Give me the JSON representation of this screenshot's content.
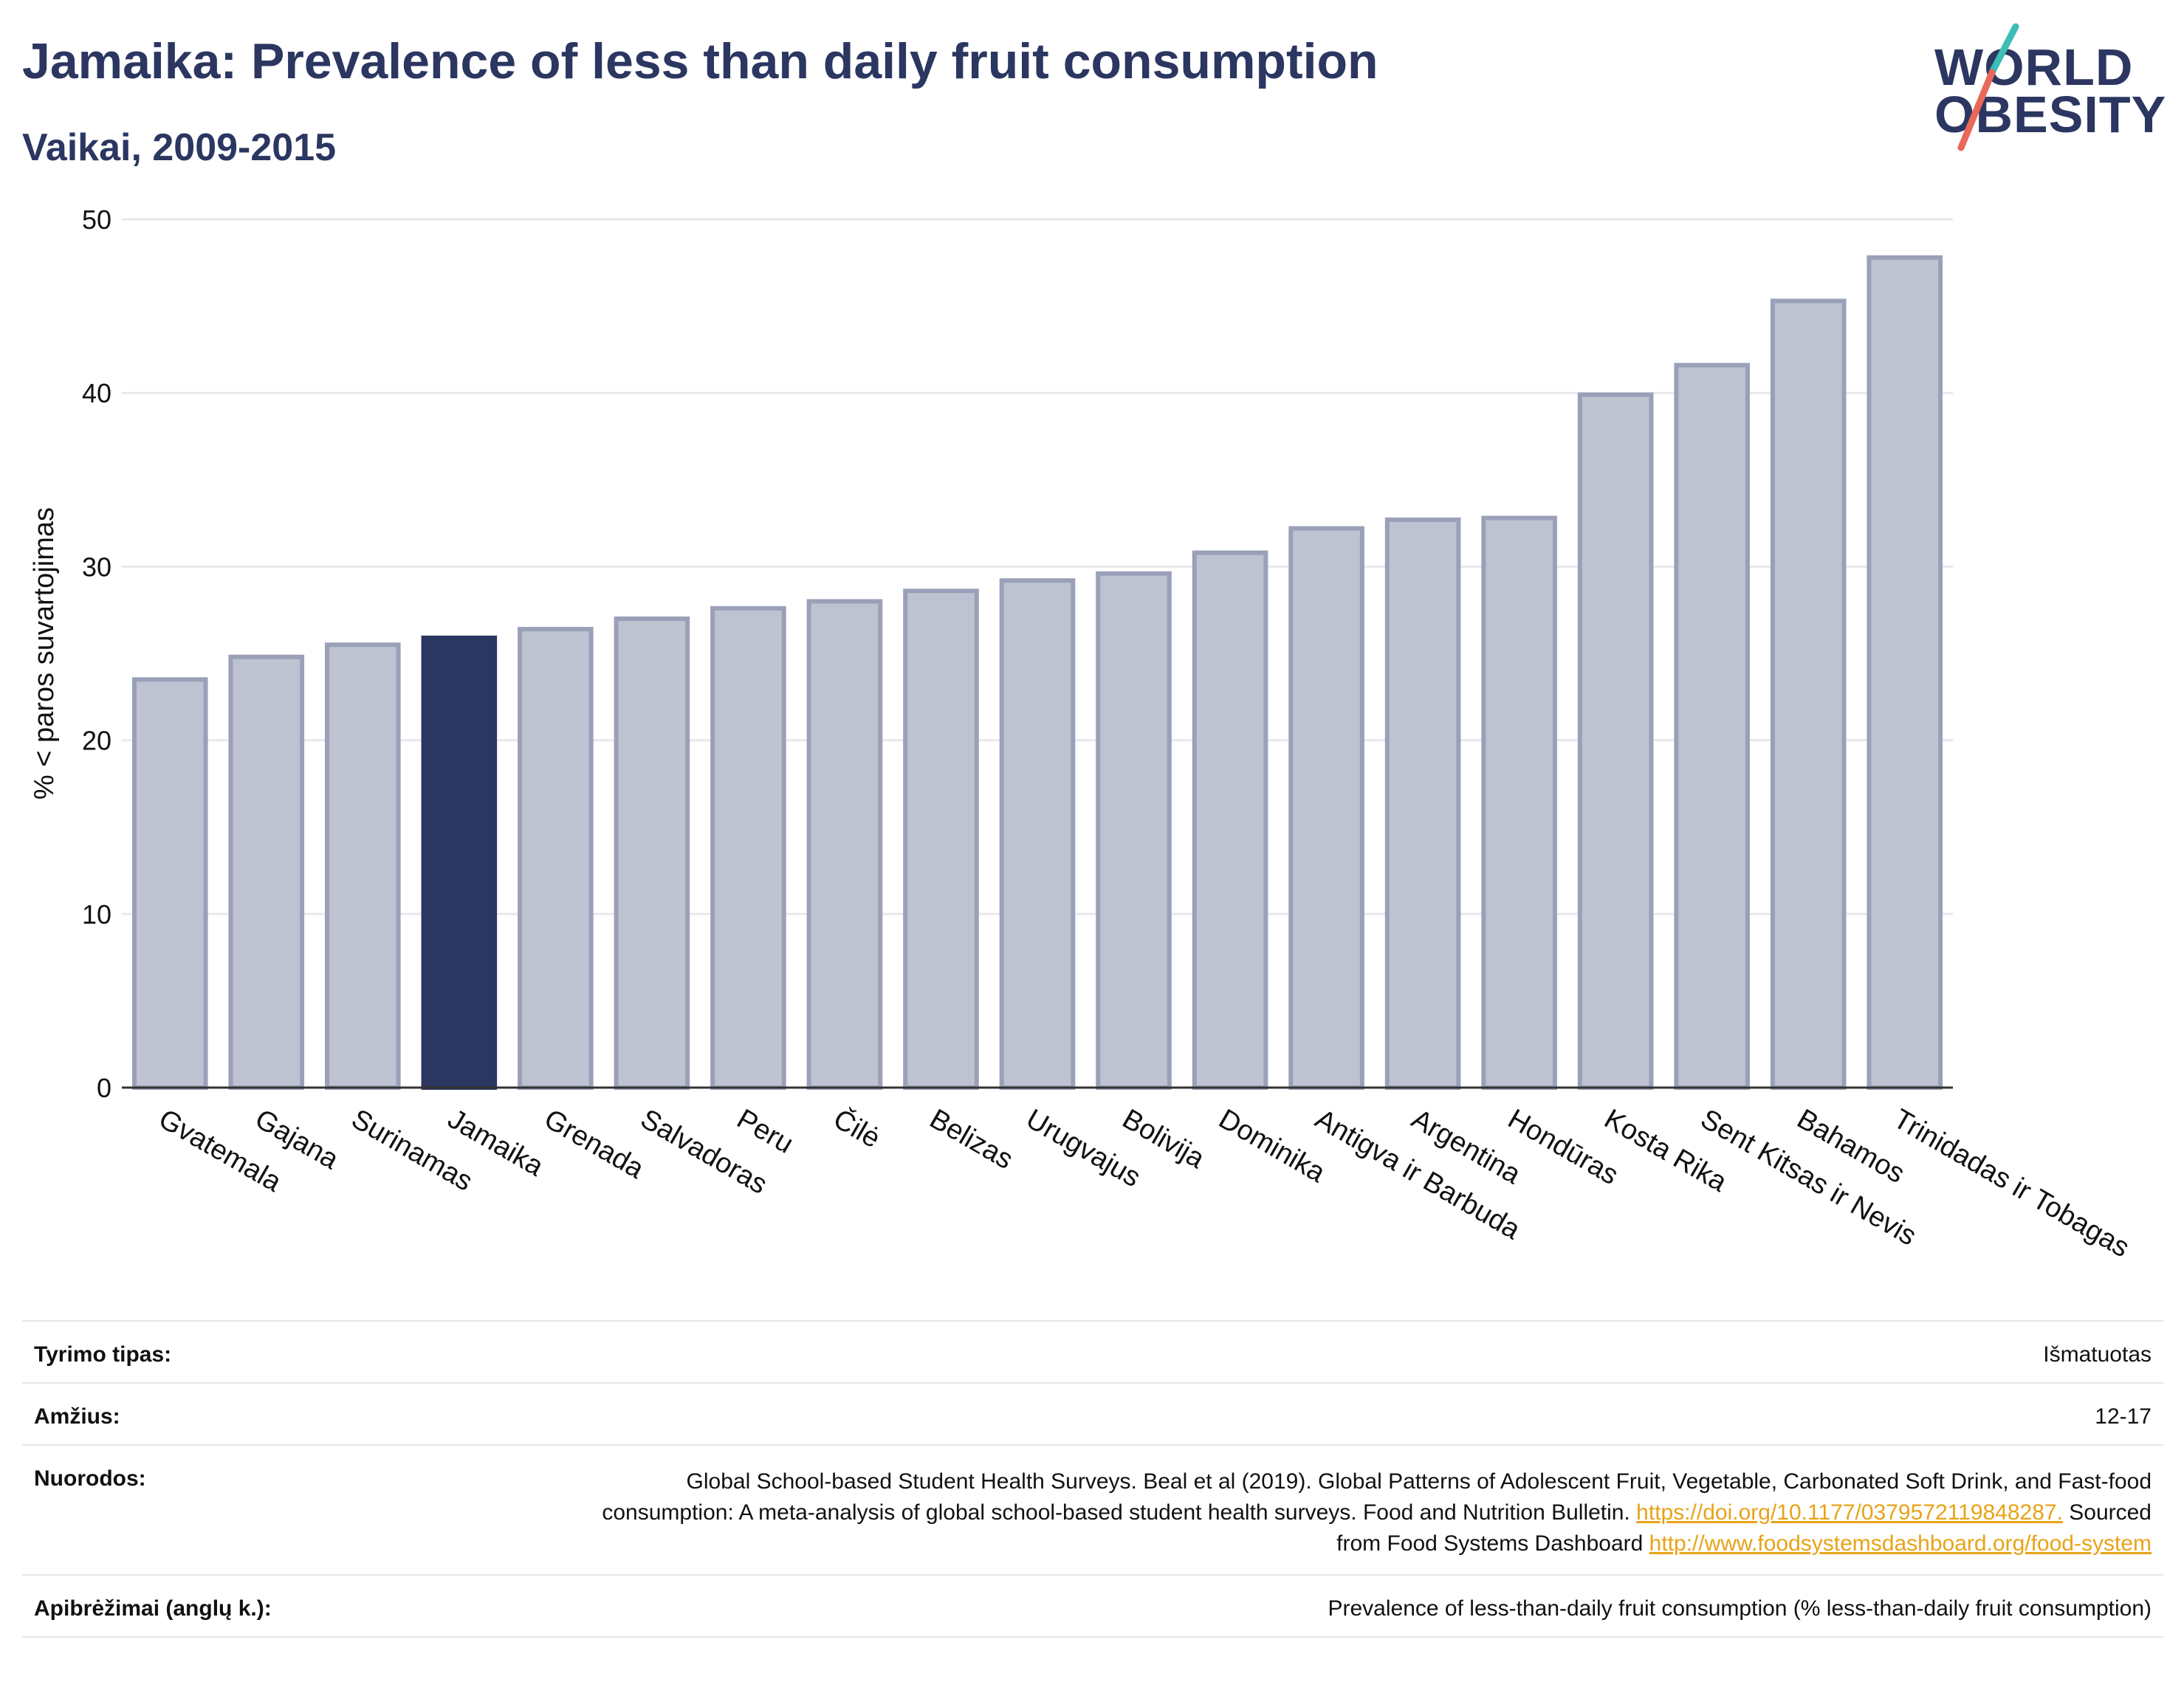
{
  "header": {
    "title": "Jamaika: Prevalence of less than daily fruit consumption",
    "subtitle": "Vaikai, 2009-2015"
  },
  "logo": {
    "line1": "WORLD",
    "line2": "OBESITY"
  },
  "colors": {
    "highlight": "#2b3661",
    "bar_fill": "#bfc2d0",
    "bar_stroke": "#9aa0b8",
    "grid": "#e8e8ee",
    "accent_link": "#e8a317",
    "logo_slash_teal": "#3dbdb5",
    "logo_slash_red": "#e8685a"
  },
  "chart_data": {
    "type": "bar",
    "ylabel": "% < paros suvartojimas",
    "ylim": [
      0,
      50
    ],
    "yticks": [
      0,
      10,
      20,
      30,
      40,
      50
    ],
    "grid": true,
    "highlight_category": "Jamaika",
    "categories": [
      "Gvatemala",
      "Gajana",
      "Surinamas",
      "Jamaika",
      "Grenada",
      "Salvadoras",
      "Peru",
      "Čilė",
      "Belizas",
      "Urugvajus",
      "Bolivija",
      "Dominika",
      "Antigva ir Barbuda",
      "Argentina",
      "Hondūras",
      "Kosta Rika",
      "Sent Kitsas ir Nevis",
      "Bahamos",
      "Trinidadas ir Tobagas"
    ],
    "values": [
      23.5,
      24.8,
      25.5,
      25.9,
      26.4,
      27.0,
      27.6,
      28.0,
      28.6,
      29.2,
      29.6,
      30.8,
      32.2,
      32.7,
      32.8,
      39.9,
      41.6,
      45.3,
      47.8
    ]
  },
  "meta": {
    "study_type": {
      "label": "Tyrimo tipas:",
      "value": "Išmatuotas"
    },
    "age": {
      "label": "Amžius:",
      "value": "12-17"
    },
    "references": {
      "label": "Nuorodos:",
      "text1": "Global School-based Student Health Surveys. Beal et al (2019). Global Patterns of Adolescent Fruit, Vegetable, Carbonated Soft Drink, and Fast-food consumption: A meta-analysis of global school-based student health surveys. Food and Nutrition Bulletin.",
      "link1": "https://doi.org/10.1177/0379572119848287.",
      "text2": "Sourced from Food Systems Dashboard",
      "link2": "http://www.foodsystemsdashboard.org/food-system"
    },
    "definitions": {
      "label": "Apibrėžimai (anglų k.):",
      "value": "Prevalence of less-than-daily fruit consumption (% less-than-daily fruit consumption)"
    }
  }
}
